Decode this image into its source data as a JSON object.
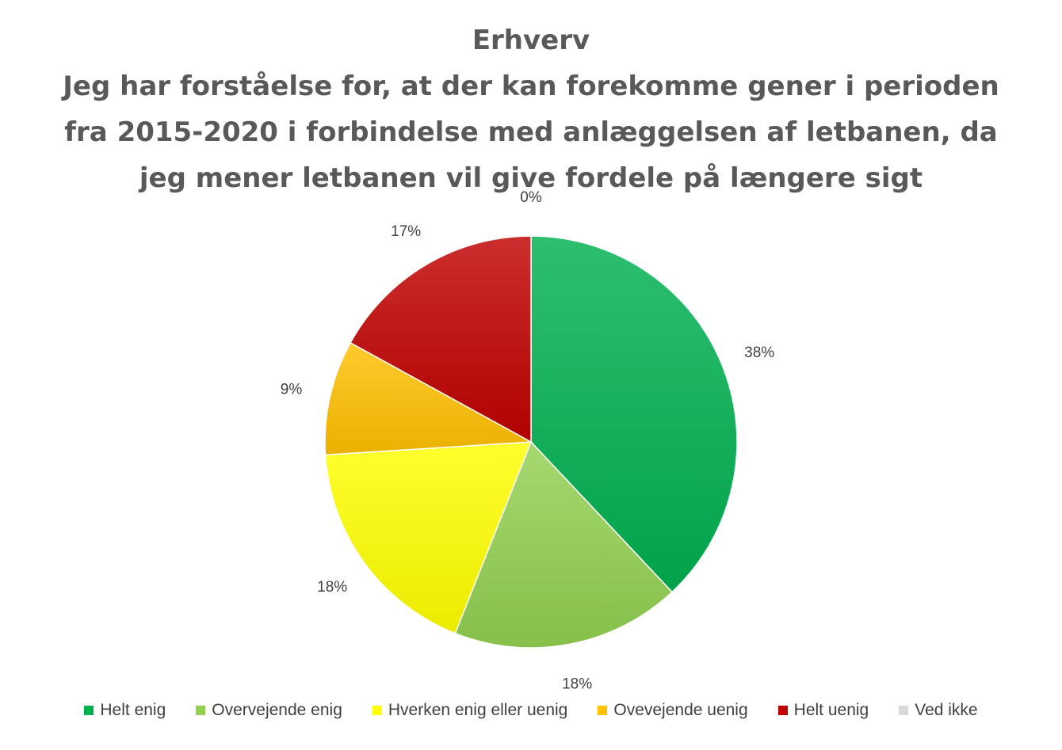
{
  "chart_data": {
    "type": "pie",
    "title_lines": [
      "Erhverv",
      "Jeg har forståelse for, at der kan forekomme gener i perioden",
      "fra 2015-2020 i forbindelse med anlæggelsen af letbanen, da",
      "jeg mener letbanen vil give fordele på længere sigt"
    ],
    "categories": [
      "Helt enig",
      "Overvejende enig",
      "Hverken enig eller uenig",
      "Ovevejende uenig",
      "Helt uenig",
      "Ved ikke"
    ],
    "values": [
      38,
      18,
      18,
      9,
      17,
      0
    ],
    "value_labels": [
      "38%",
      "18%",
      "18%",
      "9%",
      "17%",
      "0%"
    ],
    "colors": [
      "#00B050",
      "#92D050",
      "#FFFF00",
      "#FFC000",
      "#C00000",
      "#D9D9D9"
    ],
    "legend_position": "bottom"
  }
}
